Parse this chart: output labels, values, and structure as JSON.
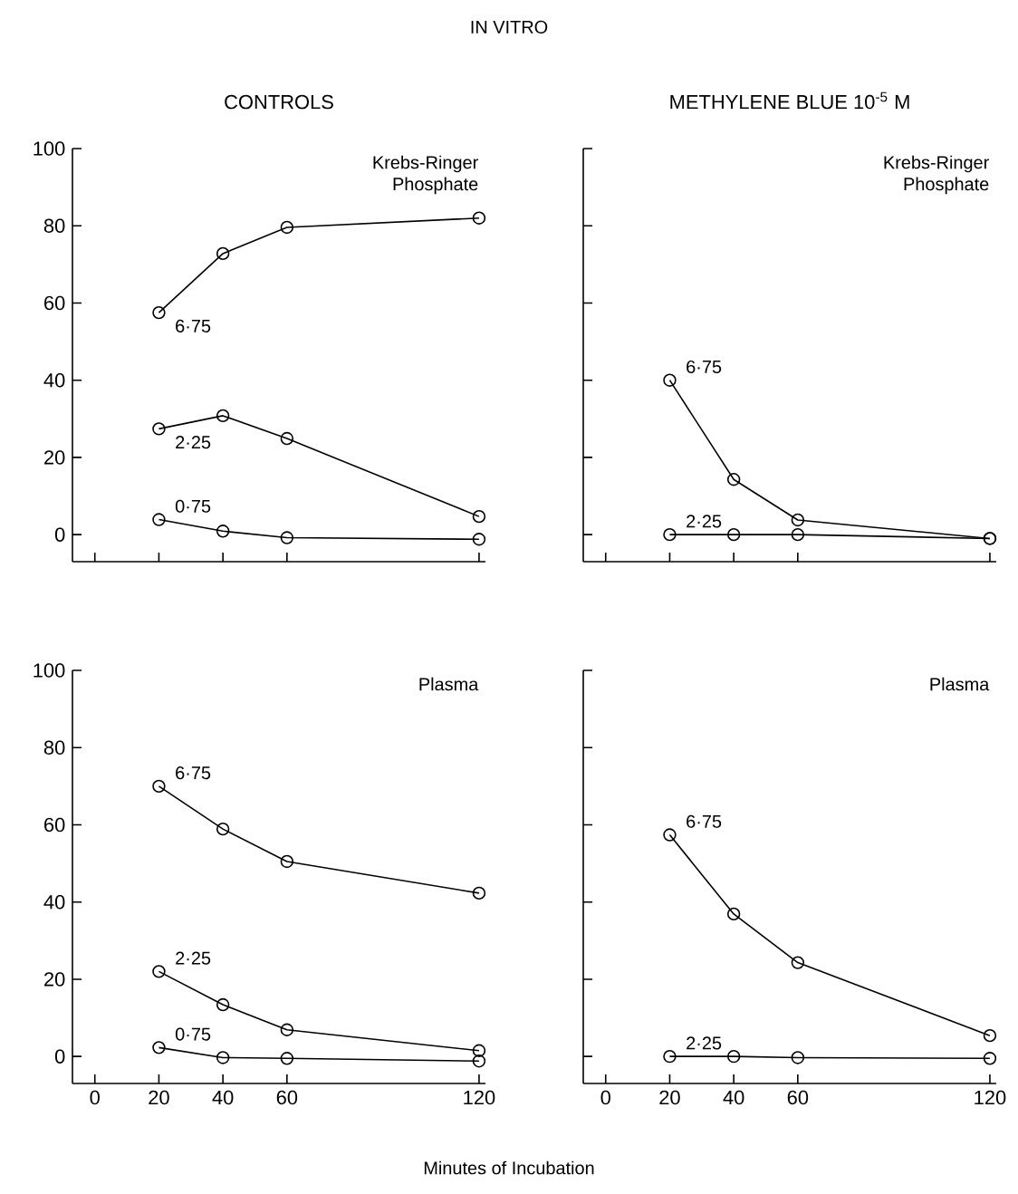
{
  "chart_data": [
    {
      "type": "line",
      "title": "CONTROLS",
      "annotations": [
        "IN VITRO",
        "Krebs-Ringer Phosphate"
      ],
      "x": [
        20,
        40,
        60,
        120
      ],
      "xlim": [
        -7,
        122
      ],
      "xticks": [
        0,
        20,
        40,
        60,
        120
      ],
      "ylim": [
        -7,
        100
      ],
      "yticks": [
        0,
        20,
        40,
        60,
        80,
        100
      ],
      "tick_labels": "y",
      "marker": "circle",
      "line_style": "solid",
      "series": [
        {
          "name": "6·75",
          "color": "#000000",
          "values": [
            57.5,
            72.8,
            79.6,
            82
          ]
        },
        {
          "name": "2·25",
          "color": "#000000",
          "values": [
            27.4,
            30.8,
            24.9,
            4.7
          ]
        },
        {
          "name": "0·75",
          "color": "#000000",
          "values": [
            3.9,
            0.9,
            -0.8,
            -1.2
          ]
        }
      ]
    },
    {
      "type": "line",
      "title": "METHYLENE BLUE 10$^{-5}$ M",
      "annotations": [
        "Krebs-Ringer Phosphate"
      ],
      "x": [
        20,
        40,
        60,
        120
      ],
      "xlim": [
        -7,
        122
      ],
      "xticks": [
        0,
        20,
        40,
        60,
        120
      ],
      "ylim": [
        -7,
        100
      ],
      "yticks": [
        0,
        20,
        40,
        60,
        80,
        100
      ],
      "tick_labels": false,
      "marker": "circle",
      "line_style": "solid",
      "series": [
        {
          "name": "6·75",
          "color": "#000000",
          "values": [
            40,
            14.3,
            3.8,
            -1
          ]
        },
        {
          "name": "2·25",
          "color": "#000000",
          "values": [
            0,
            0,
            0,
            -1
          ]
        }
      ]
    },
    {
      "type": "line",
      "xlabel": "Minutes of Incubation",
      "annotations": [
        "Plasma"
      ],
      "x": [
        20,
        40,
        60,
        120
      ],
      "xlim": [
        -7,
        122
      ],
      "xticks": [
        0,
        20,
        40,
        60,
        120
      ],
      "ylim": [
        -7,
        100
      ],
      "yticks": [
        0,
        20,
        40,
        60,
        80,
        100
      ],
      "marker": "circle",
      "line_style": "solid",
      "series": [
        {
          "name": "6·75",
          "color": "#000000",
          "values": [
            70,
            58.9,
            50.5,
            42.3
          ]
        },
        {
          "name": "2·25",
          "color": "#000000",
          "values": [
            22,
            13.4,
            6.9,
            1.5
          ]
        },
        {
          "name": "0·75",
          "color": "#000000",
          "values": [
            2.3,
            -0.3,
            -0.5,
            -1.2
          ]
        }
      ]
    },
    {
      "type": "line",
      "annotations": [
        "Plasma"
      ],
      "x": [
        20,
        40,
        60,
        120
      ],
      "xlim": [
        -7,
        122
      ],
      "xticks": [
        0,
        20,
        40,
        60,
        120
      ],
      "ylim": [
        -7,
        100
      ],
      "yticks": [
        0,
        20,
        40,
        60,
        80,
        100
      ],
      "tick_labels": "x",
      "marker": "circle",
      "line_style": "solid",
      "series": [
        {
          "name": "6·75",
          "color": "#000000",
          "values": [
            57.4,
            36.9,
            24.3,
            5.4
          ]
        },
        {
          "name": "2·25",
          "color": "#000000",
          "values": [
            0,
            0,
            -0.3,
            -0.5
          ]
        }
      ]
    }
  ]
}
